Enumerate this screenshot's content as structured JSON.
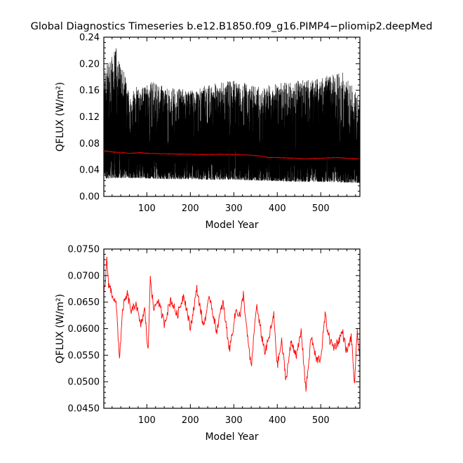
{
  "title": "Global Diagnostics Timeseries b.e12.B1850.f09_g16.PIMP4−pliomip2.deepMed",
  "colors": {
    "monthly": "#000000",
    "annual": "#ff0000",
    "axes": "#000000",
    "background": "#ffffff"
  },
  "chart_data": [
    {
      "type": "line",
      "xlabel": "Model Year",
      "ylabel": "QFLUX (W/m²)",
      "xlim": [
        1,
        590
      ],
      "ylim": [
        0.0,
        0.24
      ],
      "x_ticks": [
        100,
        200,
        300,
        400,
        500
      ],
      "x_tick_labels": [
        "100",
        "200",
        "300",
        "400",
        "500"
      ],
      "y_ticks": [
        0.0,
        0.04,
        0.08,
        0.12,
        0.16,
        0.2,
        0.24
      ],
      "y_tick_labels": [
        "0.00",
        "0.04",
        "0.08",
        "0.12",
        "0.16",
        "0.20",
        "0.24"
      ],
      "grid": false,
      "series": [
        {
          "color": "#000000",
          "style": "monthly",
          "min_envelope": [
            [
              1,
              0.027
            ],
            [
              50,
              0.028
            ],
            [
              100,
              0.027
            ],
            [
              150,
              0.026
            ],
            [
              200,
              0.026
            ],
            [
              250,
              0.025
            ],
            [
              300,
              0.025
            ],
            [
              350,
              0.024
            ],
            [
              400,
              0.023
            ],
            [
              450,
              0.022
            ],
            [
              500,
              0.022
            ],
            [
              550,
              0.021
            ],
            [
              590,
              0.02
            ]
          ],
          "max_envelope": [
            [
              1,
              0.195
            ],
            [
              10,
              0.2
            ],
            [
              30,
              0.227
            ],
            [
              60,
              0.16
            ],
            [
              100,
              0.175
            ],
            [
              150,
              0.165
            ],
            [
              200,
              0.16
            ],
            [
              250,
              0.17
            ],
            [
              310,
              0.176
            ],
            [
              350,
              0.165
            ],
            [
              400,
              0.17
            ],
            [
              450,
              0.175
            ],
            [
              500,
              0.18
            ],
            [
              550,
              0.19
            ],
            [
              590,
              0.15
            ]
          ]
        },
        {
          "color": "#ff0000",
          "style": "annual",
          "values": [
            [
              1,
              0.066
            ],
            [
              5,
              0.069
            ],
            [
              10,
              0.068
            ],
            [
              20,
              0.067
            ],
            [
              40,
              0.066
            ],
            [
              60,
              0.065
            ],
            [
              80,
              0.066
            ],
            [
              100,
              0.065
            ],
            [
              130,
              0.0645
            ],
            [
              160,
              0.064
            ],
            [
              200,
              0.0635
            ],
            [
              240,
              0.063
            ],
            [
              270,
              0.0635
            ],
            [
              300,
              0.063
            ],
            [
              330,
              0.0625
            ],
            [
              360,
              0.061
            ],
            [
              380,
              0.0585
            ],
            [
              400,
              0.0585
            ],
            [
              420,
              0.058
            ],
            [
              440,
              0.0575
            ],
            [
              460,
              0.0565
            ],
            [
              480,
              0.057
            ],
            [
              500,
              0.0575
            ],
            [
              520,
              0.058
            ],
            [
              540,
              0.0585
            ],
            [
              560,
              0.0575
            ],
            [
              580,
              0.0565
            ],
            [
              590,
              0.0565
            ]
          ]
        }
      ]
    },
    {
      "type": "line",
      "xlabel": "Model Year",
      "ylabel": "QFLUX (W/m²)",
      "xlim": [
        1,
        590
      ],
      "ylim": [
        0.045,
        0.075
      ],
      "x_ticks": [
        100,
        200,
        300,
        400,
        500
      ],
      "x_tick_labels": [
        "100",
        "200",
        "300",
        "400",
        "500"
      ],
      "y_ticks": [
        0.045,
        0.05,
        0.055,
        0.06,
        0.065,
        0.07,
        0.075
      ],
      "y_tick_labels": [
        "0.0450",
        "0.0500",
        "0.0550",
        "0.0600",
        "0.0650",
        "0.0700",
        "0.0750"
      ],
      "grid": false,
      "series": [
        {
          "color": "#ff0000",
          "style": "annual",
          "values": [
            [
              1,
              0.0665
            ],
            [
              5,
              0.0695
            ],
            [
              8,
              0.0728
            ],
            [
              12,
              0.0685
            ],
            [
              18,
              0.067
            ],
            [
              25,
              0.0655
            ],
            [
              30,
              0.064
            ],
            [
              37,
              0.0545
            ],
            [
              45,
              0.064
            ],
            [
              55,
              0.0665
            ],
            [
              65,
              0.063
            ],
            [
              75,
              0.065
            ],
            [
              85,
              0.0605
            ],
            [
              95,
              0.0635
            ],
            [
              103,
              0.0555
            ],
            [
              108,
              0.0705
            ],
            [
              115,
              0.0635
            ],
            [
              125,
              0.0655
            ],
            [
              140,
              0.061
            ],
            [
              155,
              0.0655
            ],
            [
              170,
              0.0625
            ],
            [
              185,
              0.0665
            ],
            [
              200,
              0.06
            ],
            [
              215,
              0.0675
            ],
            [
              230,
              0.0605
            ],
            [
              245,
              0.066
            ],
            [
              260,
              0.0595
            ],
            [
              275,
              0.065
            ],
            [
              290,
              0.056
            ],
            [
              305,
              0.0635
            ],
            [
              315,
              0.0625
            ],
            [
              322,
              0.0665
            ],
            [
              330,
              0.0595
            ],
            [
              340,
              0.0525
            ],
            [
              352,
              0.0645
            ],
            [
              362,
              0.0595
            ],
            [
              372,
              0.0555
            ],
            [
              380,
              0.058
            ],
            [
              392,
              0.0625
            ],
            [
              400,
              0.053
            ],
            [
              410,
              0.0575
            ],
            [
              420,
              0.0505
            ],
            [
              432,
              0.0575
            ],
            [
              445,
              0.055
            ],
            [
              455,
              0.0595
            ],
            [
              466,
              0.0485
            ],
            [
              478,
              0.0585
            ],
            [
              490,
              0.054
            ],
            [
              500,
              0.0545
            ],
            [
              510,
              0.0625
            ],
            [
              520,
              0.058
            ],
            [
              530,
              0.0565
            ],
            [
              540,
              0.0575
            ],
            [
              550,
              0.0595
            ],
            [
              560,
              0.0555
            ],
            [
              570,
              0.0585
            ],
            [
              578,
              0.0495
            ],
            [
              584,
              0.0595
            ],
            [
              590,
              0.0545
            ]
          ]
        }
      ]
    }
  ]
}
